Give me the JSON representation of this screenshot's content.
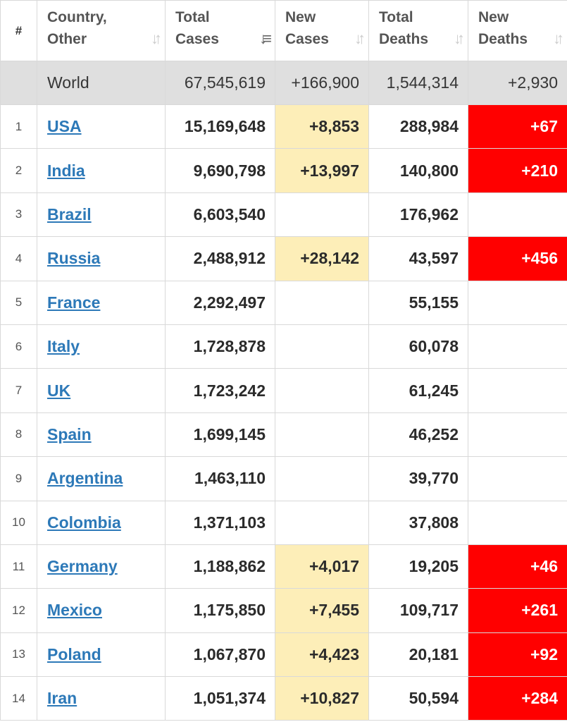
{
  "header": {
    "rank": "#",
    "country_line1": "Country,",
    "country_line2": "Other",
    "total_cases_line1": "Total",
    "total_cases_line2": "Cases",
    "new_cases_line1": "New",
    "new_cases_line2": "Cases",
    "total_deaths_line1": "Total",
    "total_deaths_line2": "Deaths",
    "new_deaths_line1": "New",
    "new_deaths_line2": "Deaths",
    "sort_icon_name": "sort-arrows-icon",
    "active_sort_column": "total_cases"
  },
  "world": {
    "name": "World",
    "total_cases": "67,545,619",
    "new_cases": "+166,900",
    "total_deaths": "1,544,314",
    "new_deaths": "+2,930"
  },
  "colors": {
    "new_cases_highlight": "#fdeeb8",
    "new_deaths_highlight": "#ff0000",
    "link": "#2d79b8",
    "world_row": "#dfdfdf"
  },
  "rows": [
    {
      "rank": "1",
      "country": "USA",
      "total_cases": "15,169,648",
      "new_cases": "+8,853",
      "total_deaths": "288,984",
      "new_deaths": "+67"
    },
    {
      "rank": "2",
      "country": "India",
      "total_cases": "9,690,798",
      "new_cases": "+13,997",
      "total_deaths": "140,800",
      "new_deaths": "+210"
    },
    {
      "rank": "3",
      "country": "Brazil",
      "total_cases": "6,603,540",
      "new_cases": "",
      "total_deaths": "176,962",
      "new_deaths": ""
    },
    {
      "rank": "4",
      "country": "Russia",
      "total_cases": "2,488,912",
      "new_cases": "+28,142",
      "total_deaths": "43,597",
      "new_deaths": "+456"
    },
    {
      "rank": "5",
      "country": "France",
      "total_cases": "2,292,497",
      "new_cases": "",
      "total_deaths": "55,155",
      "new_deaths": ""
    },
    {
      "rank": "6",
      "country": "Italy",
      "total_cases": "1,728,878",
      "new_cases": "",
      "total_deaths": "60,078",
      "new_deaths": ""
    },
    {
      "rank": "7",
      "country": "UK",
      "total_cases": "1,723,242",
      "new_cases": "",
      "total_deaths": "61,245",
      "new_deaths": ""
    },
    {
      "rank": "8",
      "country": "Spain",
      "total_cases": "1,699,145",
      "new_cases": "",
      "total_deaths": "46,252",
      "new_deaths": ""
    },
    {
      "rank": "9",
      "country": "Argentina",
      "total_cases": "1,463,110",
      "new_cases": "",
      "total_deaths": "39,770",
      "new_deaths": ""
    },
    {
      "rank": "10",
      "country": "Colombia",
      "total_cases": "1,371,103",
      "new_cases": "",
      "total_deaths": "37,808",
      "new_deaths": ""
    },
    {
      "rank": "11",
      "country": "Germany",
      "total_cases": "1,188,862",
      "new_cases": "+4,017",
      "total_deaths": "19,205",
      "new_deaths": "+46"
    },
    {
      "rank": "12",
      "country": "Mexico",
      "total_cases": "1,175,850",
      "new_cases": "+7,455",
      "total_deaths": "109,717",
      "new_deaths": "+261"
    },
    {
      "rank": "13",
      "country": "Poland",
      "total_cases": "1,067,870",
      "new_cases": "+4,423",
      "total_deaths": "20,181",
      "new_deaths": "+92"
    },
    {
      "rank": "14",
      "country": "Iran",
      "total_cases": "1,051,374",
      "new_cases": "+10,827",
      "total_deaths": "50,594",
      "new_deaths": "+284"
    }
  ]
}
